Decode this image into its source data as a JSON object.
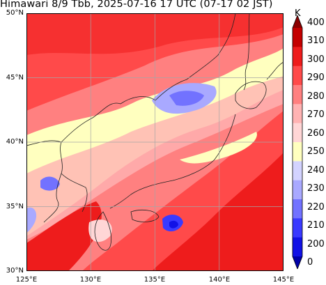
{
  "title": "Himawari 8/9 Tbb, 2025-07-16 17 UTC (07-17 02 JST)",
  "map": {
    "lon_range": [
      125,
      145
    ],
    "lat_range": [
      30,
      50
    ],
    "lon_ticks": [
      "125°E",
      "130°E",
      "135°E",
      "140°E",
      "145°E"
    ],
    "lat_ticks": [
      "50°N",
      "45°N",
      "40°N",
      "35°N",
      "30°N"
    ],
    "gridlines": true,
    "field": "cloud-top brightness temperature (Tbb)"
  },
  "colorbar": {
    "unit": "K",
    "orientation": "vertical",
    "position": "right",
    "extend": "both",
    "tick_labels": [
      "400",
      "310",
      "300",
      "290",
      "280",
      "270",
      "260",
      "250",
      "240",
      "230",
      "220",
      "210",
      "200",
      "0"
    ],
    "colors": [
      "#8b0000",
      "#c40000",
      "#ee1c1c",
      "#ff4a4a",
      "#ff8080",
      "#ffb3b3",
      "#ffd6d6",
      "#ffffbf",
      "#d3d3ff",
      "#a9a9ff",
      "#7272ff",
      "#3a3aff",
      "#1212e6",
      "#0000a8"
    ]
  }
}
